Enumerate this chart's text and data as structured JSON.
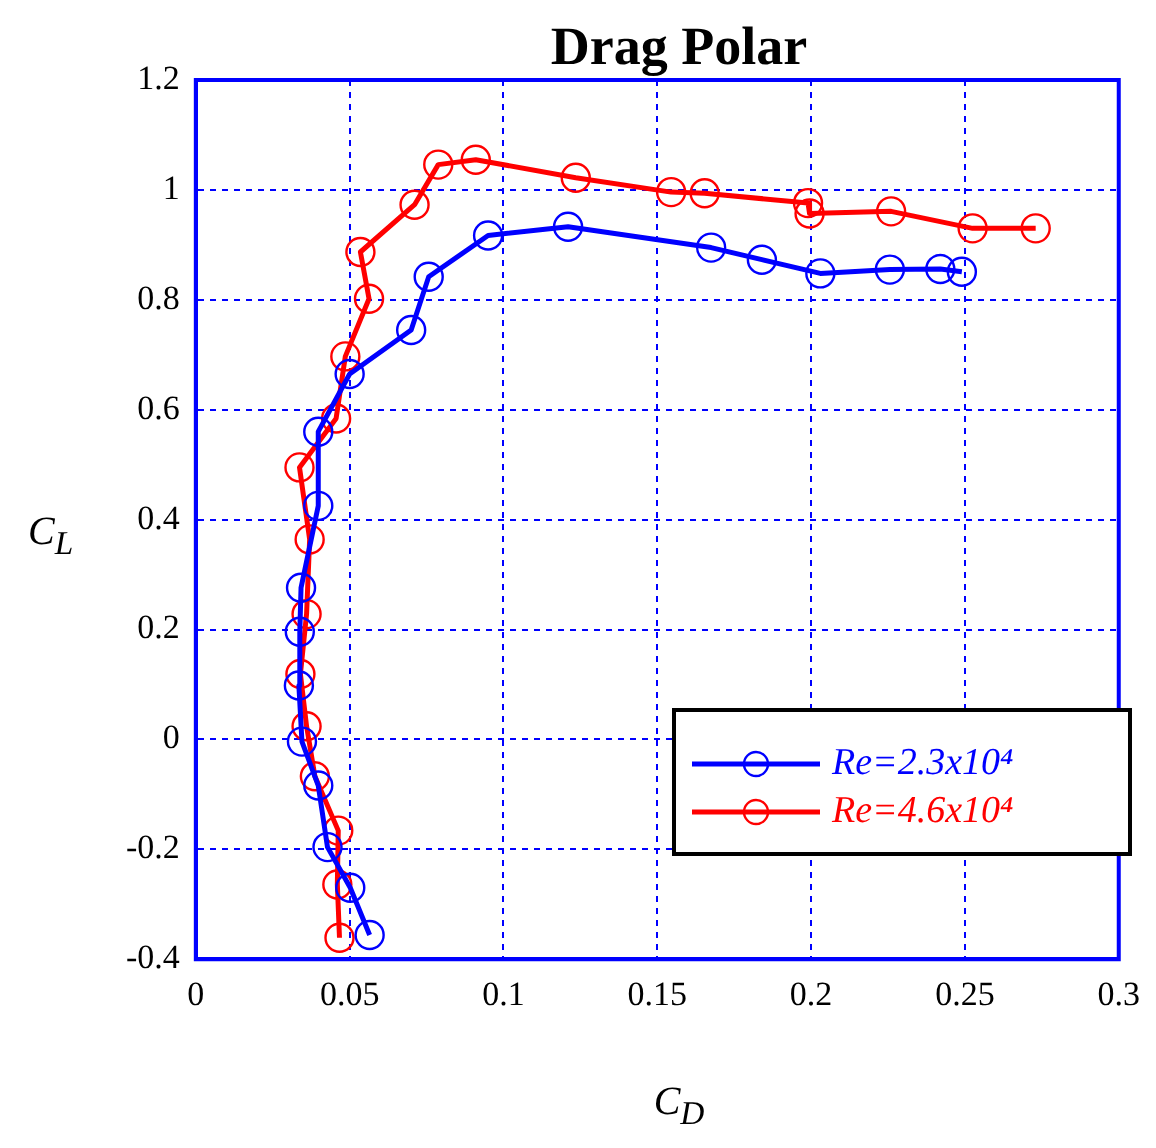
{
  "chart_data": {
    "type": "line",
    "title": "Drag Polar",
    "xlabel": "C$_{D}$",
    "ylabel": "C$_{L}$",
    "xlim": [
      0,
      0.3
    ],
    "xticks": [
      0,
      0.05,
      0.1,
      0.15,
      0.2,
      0.25,
      0.3
    ],
    "ylim": [
      -0.4,
      1.2
    ],
    "yticks": [
      -0.4,
      -0.2,
      0,
      0.2,
      0.4,
      0.6,
      0.8,
      1,
      1.2
    ],
    "grid": true,
    "legend": "bottom right",
    "marker": "circle",
    "line_style": "solid",
    "series": [
      {
        "name": "Re=2.3x10⁴",
        "color": "#0000ff",
        "x": [
          0.0565,
          0.0502,
          0.0428,
          0.0398,
          0.0345,
          0.0335,
          0.0338,
          0.0342,
          0.0398,
          0.0398,
          0.05,
          0.07,
          0.0757,
          0.095,
          0.121,
          0.1675,
          0.184,
          0.203,
          0.2256,
          0.242,
          0.249
        ],
        "values": [
          -0.356,
          -0.27,
          -0.196,
          -0.084,
          -0.004,
          0.098,
          0.196,
          0.276,
          0.425,
          0.56,
          0.665,
          0.745,
          0.842,
          0.917,
          0.933,
          0.895,
          0.873,
          0.848,
          0.855,
          0.856,
          0.851
        ]
      },
      {
        "name": "Re=4.6x10⁴",
        "color": "#ff0000",
        "x": [
          0.0467,
          0.046,
          0.0463,
          0.0387,
          0.036,
          0.034,
          0.036,
          0.037,
          0.0337,
          0.0456,
          0.0486,
          0.0563,
          0.0535,
          0.0711,
          0.0788,
          0.091,
          0.1235,
          0.1545,
          0.1654,
          0.199,
          0.1995,
          0.226,
          0.2525,
          0.273
        ],
        "values": [
          -0.361,
          -0.264,
          -0.166,
          -0.067,
          0.024,
          0.119,
          0.228,
          0.364,
          0.495,
          0.584,
          0.697,
          0.802,
          0.887,
          0.973,
          1.046,
          1.055,
          1.022,
          0.996,
          0.994,
          0.976,
          0.957,
          0.961,
          0.93,
          0.93
        ]
      }
    ]
  }
}
